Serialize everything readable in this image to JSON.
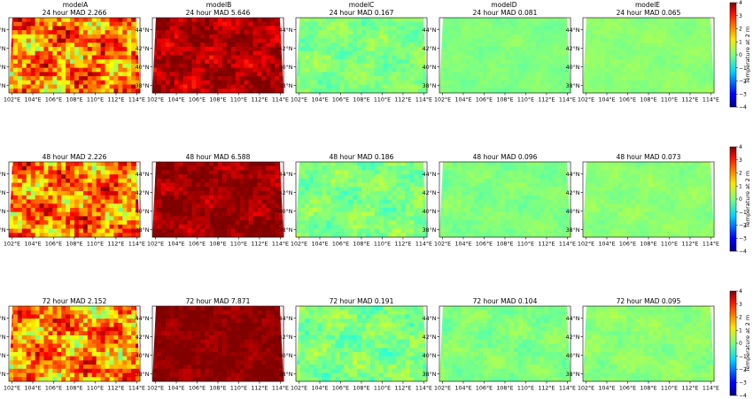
{
  "chart_data": {
    "type": "heatmap",
    "columns": [
      "modelA",
      "modelB",
      "modelC",
      "modelD",
      "modelE"
    ],
    "rows": [
      {
        "lead": "24 hour",
        "mad": [
          "2.266",
          "5.646",
          "0.167",
          "0.081",
          "0.065"
        ]
      },
      {
        "lead": "48 hour",
        "mad": [
          "2.226",
          "6.588",
          "0.186",
          "0.096",
          "0.073"
        ]
      },
      {
        "lead": "72 hour",
        "mad": [
          "2.152",
          "7.871",
          "0.191",
          "0.104",
          "0.095"
        ]
      }
    ],
    "mad_prefix": "MAD",
    "lon_ticks": [
      "102°E",
      "104°E",
      "106°E",
      "108°E",
      "110°E",
      "112°E",
      "114°E"
    ],
    "lat_ticks": [
      "44°N",
      "42°N",
      "40°N",
      "38°N"
    ],
    "lon_range": [
      101.7,
      114.3
    ],
    "lat_range": [
      37.2,
      45.3
    ],
    "colorbar": {
      "label": "Temperature at 2 m",
      "ticks": [
        4,
        3,
        2,
        1,
        0,
        -1,
        -2,
        -3,
        -4
      ],
      "range": [
        -4,
        4
      ],
      "colormap": "jet"
    },
    "bias_level": {
      "modelA": [
        2.0,
        2.0,
        1.9
      ],
      "modelB": [
        3.6,
        3.8,
        3.9
      ],
      "modelC": [
        0.0,
        0.0,
        0.0
      ],
      "modelD": [
        0.0,
        0.0,
        0.0
      ],
      "modelE": [
        0.1,
        0.1,
        0.1
      ]
    },
    "noise_level": {
      "modelA": [
        1.4,
        1.4,
        1.4
      ],
      "modelB": [
        0.6,
        0.5,
        0.3
      ],
      "modelC": [
        0.35,
        0.4,
        0.45
      ],
      "modelD": [
        0.15,
        0.2,
        0.25
      ],
      "modelE": [
        0.15,
        0.18,
        0.22
      ]
    }
  }
}
